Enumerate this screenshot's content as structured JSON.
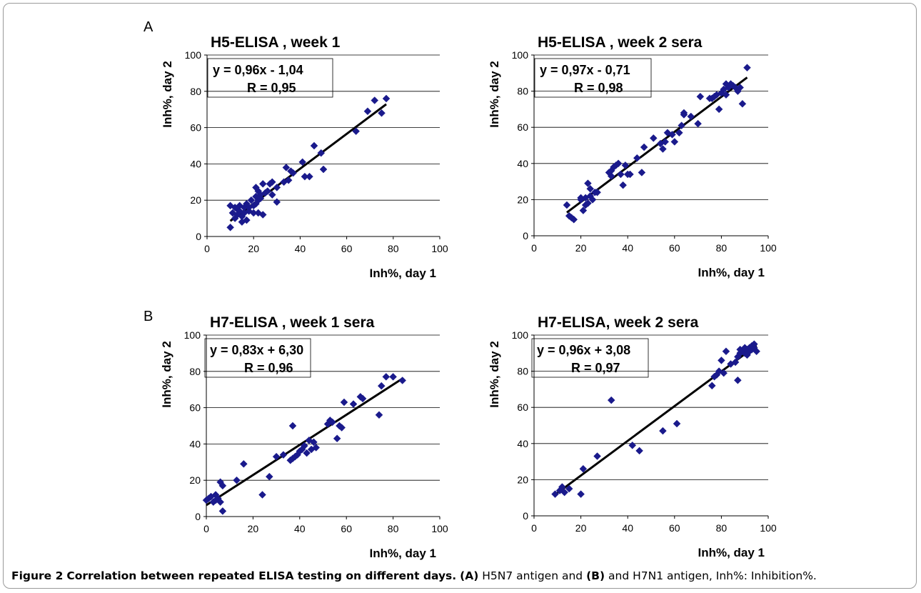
{
  "figure": {
    "panel_labels": [
      "A",
      "B"
    ],
    "caption": {
      "label": "Figure 2",
      "title": "Correlation between repeated ELISA testing on different days.",
      "part_a": "(A)",
      "text_a": "H5N7 antigen and",
      "part_b": "(B)",
      "text_b": "and H7N1 antigen, Inh%: Inhibition%."
    }
  },
  "colors": {
    "marker": "#1a1a8c",
    "line": "#000000",
    "grid": "#000000"
  },
  "chart_data": [
    {
      "type": "scatter",
      "panel": "A",
      "title": "H5-ELISA , week 1",
      "xlabel": "Inh%, day 1",
      "ylabel": "Inh%, day 2",
      "xlim": [
        0,
        100
      ],
      "ylim": [
        0,
        100
      ],
      "xticks": [
        0,
        20,
        40,
        60,
        80,
        100
      ],
      "yticks": [
        0,
        20,
        40,
        60,
        80,
        100
      ],
      "grid": "horizontal",
      "equation": "y = 0,96x - 1,04",
      "r_value": "R = 0,95",
      "trendline": {
        "slope": 0.96,
        "intercept": -1.04,
        "x_range": [
          10,
          77
        ]
      },
      "points": [
        [
          10,
          17
        ],
        [
          10,
          5
        ],
        [
          11,
          13
        ],
        [
          12,
          10
        ],
        [
          12,
          16
        ],
        [
          13,
          15
        ],
        [
          13,
          12
        ],
        [
          14,
          17
        ],
        [
          14,
          14
        ],
        [
          15,
          11
        ],
        [
          15,
          8
        ],
        [
          16,
          16
        ],
        [
          16,
          13
        ],
        [
          17,
          9
        ],
        [
          17,
          18
        ],
        [
          18,
          14
        ],
        [
          18,
          16
        ],
        [
          19,
          20
        ],
        [
          20,
          17
        ],
        [
          20,
          13
        ],
        [
          21,
          22
        ],
        [
          21,
          18
        ],
        [
          21,
          27
        ],
        [
          22,
          25
        ],
        [
          22,
          13
        ],
        [
          22,
          20
        ],
        [
          23,
          23
        ],
        [
          23,
          21
        ],
        [
          24,
          12
        ],
        [
          24,
          29
        ],
        [
          25,
          24
        ],
        [
          26,
          25
        ],
        [
          27,
          29
        ],
        [
          28,
          23
        ],
        [
          28,
          30
        ],
        [
          30,
          19
        ],
        [
          30,
          27
        ],
        [
          33,
          30
        ],
        [
          34,
          38
        ],
        [
          35,
          31
        ],
        [
          36,
          36
        ],
        [
          37,
          35
        ],
        [
          41,
          41
        ],
        [
          42,
          33
        ],
        [
          44,
          33
        ],
        [
          46,
          50
        ],
        [
          49,
          46
        ],
        [
          50,
          37
        ],
        [
          64,
          58
        ],
        [
          69,
          69
        ],
        [
          72,
          75
        ],
        [
          75,
          68
        ],
        [
          77,
          76
        ]
      ]
    },
    {
      "type": "scatter",
      "panel": "A",
      "title": "H5-ELISA ,  week 2 sera",
      "xlabel": "Inh%, day 1",
      "ylabel": "Inh%, day 2",
      "xlim": [
        0,
        100
      ],
      "ylim": [
        0,
        100
      ],
      "xticks": [
        0,
        20,
        40,
        60,
        80,
        100
      ],
      "yticks": [
        0,
        20,
        40,
        60,
        80,
        100
      ],
      "grid": "horizontal",
      "equation": "y = 0,97x - 0,71",
      "r_value": "R = 0,98",
      "trendline": {
        "slope": 0.97,
        "intercept": -0.71,
        "x_range": [
          14,
          91
        ]
      },
      "points": [
        [
          14,
          17
        ],
        [
          15,
          11
        ],
        [
          16,
          10
        ],
        [
          17,
          9
        ],
        [
          20,
          20
        ],
        [
          20,
          21
        ],
        [
          21,
          14
        ],
        [
          22,
          17
        ],
        [
          22,
          21
        ],
        [
          23,
          29
        ],
        [
          23,
          18
        ],
        [
          24,
          26
        ],
        [
          24,
          22
        ],
        [
          25,
          20
        ],
        [
          26,
          24
        ],
        [
          27,
          24
        ],
        [
          32,
          35
        ],
        [
          33,
          36
        ],
        [
          33,
          33
        ],
        [
          34,
          38
        ],
        [
          35,
          39
        ],
        [
          36,
          40
        ],
        [
          37,
          34
        ],
        [
          38,
          28
        ],
        [
          39,
          39
        ],
        [
          40,
          34
        ],
        [
          41,
          34
        ],
        [
          44,
          43
        ],
        [
          46,
          35
        ],
        [
          47,
          49
        ],
        [
          51,
          54
        ],
        [
          54,
          51
        ],
        [
          55,
          48
        ],
        [
          56,
          52
        ],
        [
          57,
          57
        ],
        [
          59,
          56
        ],
        [
          60,
          52
        ],
        [
          62,
          57
        ],
        [
          63,
          61
        ],
        [
          64,
          68
        ],
        [
          64,
          67
        ],
        [
          67,
          66
        ],
        [
          70,
          62
        ],
        [
          71,
          77
        ],
        [
          75,
          76
        ],
        [
          76,
          76
        ],
        [
          77,
          77
        ],
        [
          78,
          78
        ],
        [
          79,
          70
        ],
        [
          80,
          79
        ],
        [
          81,
          81
        ],
        [
          82,
          84
        ],
        [
          82,
          78
        ],
        [
          83,
          82
        ],
        [
          84,
          84
        ],
        [
          85,
          83
        ],
        [
          86,
          82
        ],
        [
          87,
          80
        ],
        [
          88,
          82
        ],
        [
          89,
          73
        ],
        [
          91,
          93
        ]
      ]
    },
    {
      "type": "scatter",
      "panel": "B",
      "title": "H7-ELISA , week 1 sera",
      "xlabel": "Inh%, day 1",
      "ylabel": "Inh%, day 2",
      "xlim": [
        0,
        100
      ],
      "ylim": [
        0,
        100
      ],
      "xticks": [
        0,
        20,
        40,
        60,
        80,
        100
      ],
      "yticks": [
        0,
        20,
        40,
        60,
        80,
        100
      ],
      "grid": "horizontal",
      "equation": "y = 0,83x + 6,30",
      "r_value": "R = 0,96",
      "trendline": {
        "slope": 0.83,
        "intercept": 6.3,
        "x_range": [
          0,
          84
        ]
      },
      "points": [
        [
          0,
          9
        ],
        [
          1,
          10
        ],
        [
          2,
          11
        ],
        [
          3,
          8
        ],
        [
          4,
          9
        ],
        [
          4,
          12
        ],
        [
          5,
          10
        ],
        [
          6,
          19
        ],
        [
          6,
          8
        ],
        [
          7,
          17
        ],
        [
          7,
          3
        ],
        [
          13,
          20
        ],
        [
          16,
          29
        ],
        [
          24,
          12
        ],
        [
          27,
          22
        ],
        [
          30,
          33
        ],
        [
          33,
          34
        ],
        [
          36,
          31
        ],
        [
          37,
          50
        ],
        [
          37,
          32
        ],
        [
          38,
          33
        ],
        [
          39,
          34
        ],
        [
          40,
          36
        ],
        [
          41,
          37
        ],
        [
          42,
          39
        ],
        [
          43,
          35
        ],
        [
          44,
          42
        ],
        [
          45,
          37
        ],
        [
          46,
          41
        ],
        [
          47,
          38
        ],
        [
          52,
          51
        ],
        [
          53,
          53
        ],
        [
          54,
          52
        ],
        [
          56,
          43
        ],
        [
          57,
          50
        ],
        [
          58,
          49
        ],
        [
          59,
          63
        ],
        [
          63,
          62
        ],
        [
          66,
          66
        ],
        [
          67,
          65
        ],
        [
          74,
          56
        ],
        [
          75,
          72
        ],
        [
          77,
          77
        ],
        [
          80,
          77
        ],
        [
          84,
          75
        ]
      ]
    },
    {
      "type": "scatter",
      "panel": "B",
      "title": "H7-ELISA,  week 2 sera",
      "xlabel": "Inh%, day 1",
      "ylabel": "Inh%, day 2",
      "xlim": [
        0,
        100
      ],
      "ylim": [
        0,
        100
      ],
      "xticks": [
        0,
        20,
        40,
        60,
        80,
        100
      ],
      "yticks": [
        0,
        20,
        40,
        60,
        80,
        100
      ],
      "grid": "horizontal",
      "equation": "y = 0,96x + 3,08",
      "r_value": "R = 0,97",
      "trendline": {
        "slope": 0.96,
        "intercept": 3.08,
        "x_range": [
          9,
          95
        ]
      },
      "points": [
        [
          9,
          12
        ],
        [
          11,
          14
        ],
        [
          12,
          16
        ],
        [
          13,
          13
        ],
        [
          15,
          15
        ],
        [
          20,
          12
        ],
        [
          21,
          26
        ],
        [
          27,
          33
        ],
        [
          33,
          64
        ],
        [
          42,
          39
        ],
        [
          45,
          36
        ],
        [
          55,
          47
        ],
        [
          61,
          51
        ],
        [
          76,
          72
        ],
        [
          77,
          77
        ],
        [
          78,
          78
        ],
        [
          79,
          80
        ],
        [
          80,
          86
        ],
        [
          81,
          79
        ],
        [
          82,
          91
        ],
        [
          84,
          84
        ],
        [
          86,
          85
        ],
        [
          87,
          75
        ],
        [
          87,
          88
        ],
        [
          88,
          90
        ],
        [
          88,
          92
        ],
        [
          89,
          91
        ],
        [
          90,
          90
        ],
        [
          90,
          93
        ],
        [
          91,
          89
        ],
        [
          91,
          92
        ],
        [
          92,
          91
        ],
        [
          92,
          93
        ],
        [
          93,
          92
        ],
        [
          93,
          94
        ],
        [
          94,
          93
        ],
        [
          94,
          95
        ],
        [
          95,
          91
        ]
      ]
    }
  ]
}
